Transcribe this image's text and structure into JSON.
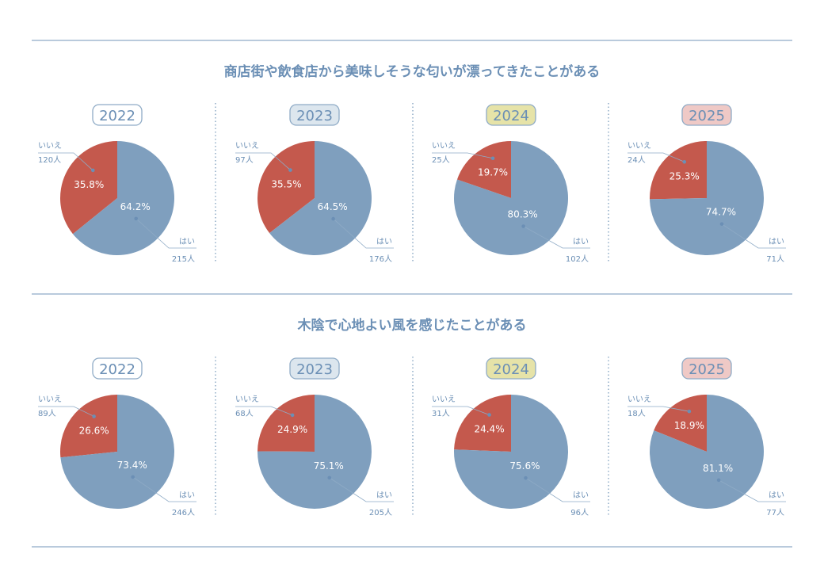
{
  "colors": {
    "yes": "#7f9fbe",
    "no": "#c4594d",
    "text": "#6b8fb5",
    "line": "#8fabc6"
  },
  "year_badge_colors": {
    "2022": "#ffffff",
    "2023": "#dce6ee",
    "2024": "#e6e3a8",
    "2025": "#efc9c6"
  },
  "chart_data": [
    {
      "type": "pie",
      "title": "商店街や飲食店から美味しそうな匂いが漂ってきたことがある",
      "charts": [
        {
          "year": "2022",
          "slices": [
            {
              "label": "はい",
              "count": "215人",
              "percent": "64.2%",
              "value": 64.2
            },
            {
              "label": "いいえ",
              "count": "120人",
              "percent": "35.8%",
              "value": 35.8
            }
          ]
        },
        {
          "year": "2023",
          "slices": [
            {
              "label": "はい",
              "count": "176人",
              "percent": "64.5%",
              "value": 64.5
            },
            {
              "label": "いいえ",
              "count": "97人",
              "percent": "35.5%",
              "value": 35.5
            }
          ]
        },
        {
          "year": "2024",
          "slices": [
            {
              "label": "はい",
              "count": "102人",
              "percent": "80.3%",
              "value": 80.3
            },
            {
              "label": "いいえ",
              "count": "25人",
              "percent": "19.7%",
              "value": 19.7
            }
          ]
        },
        {
          "year": "2025",
          "slices": [
            {
              "label": "はい",
              "count": "71人",
              "percent": "74.7%",
              "value": 74.7
            },
            {
              "label": "いいえ",
              "count": "24人",
              "percent": "25.3%",
              "value": 25.3
            }
          ]
        }
      ]
    },
    {
      "type": "pie",
      "title": "木陰で心地よい風を感じたことがある",
      "charts": [
        {
          "year": "2022",
          "slices": [
            {
              "label": "はい",
              "count": "246人",
              "percent": "73.4%",
              "value": 73.4
            },
            {
              "label": "いいえ",
              "count": "89人",
              "percent": "26.6%",
              "value": 26.6
            }
          ]
        },
        {
          "year": "2023",
          "slices": [
            {
              "label": "はい",
              "count": "205人",
              "percent": "75.1%",
              "value": 75.1
            },
            {
              "label": "いいえ",
              "count": "68人",
              "percent": "24.9%",
              "value": 24.9
            }
          ]
        },
        {
          "year": "2024",
          "slices": [
            {
              "label": "はい",
              "count": "96人",
              "percent": "75.6%",
              "value": 75.6
            },
            {
              "label": "いいえ",
              "count": "31人",
              "percent": "24.4%",
              "value": 24.4
            }
          ]
        },
        {
          "year": "2025",
          "slices": [
            {
              "label": "はい",
              "count": "77人",
              "percent": "81.1%",
              "value": 81.1
            },
            {
              "label": "いいえ",
              "count": "18人",
              "percent": "18.9%",
              "value": 18.9
            }
          ]
        }
      ]
    }
  ]
}
